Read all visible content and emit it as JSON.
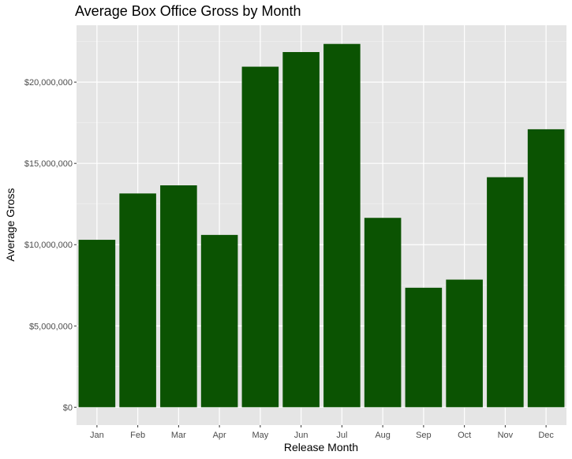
{
  "chart_data": {
    "type": "bar",
    "title": "Average Box Office Gross by Month",
    "xlabel": "Release Month",
    "ylabel": "Average Gross",
    "categories": [
      "Jan",
      "Feb",
      "Mar",
      "Apr",
      "May",
      "Jun",
      "Jul",
      "Aug",
      "Sep",
      "Oct",
      "Nov",
      "Dec"
    ],
    "values": [
      10300000,
      13150000,
      13650000,
      10600000,
      20950000,
      21850000,
      22350000,
      11650000,
      7350000,
      7850000,
      14150000,
      17100000
    ],
    "ylim": [
      -1100000,
      23500000
    ],
    "yticks": [
      0,
      5000000,
      10000000,
      15000000,
      20000000
    ],
    "ytick_labels": [
      "$0",
      "$5,000,000",
      "$10,000,000",
      "$15,000,000",
      "$20,000,000"
    ],
    "grid": true,
    "legend": "none",
    "colors": {
      "bar": "#0b5302",
      "panel": "#e5e5e5",
      "grid_major": "#ffffff",
      "grid_minor": "#f2f2f2",
      "tick_text": "#4d4d4d"
    }
  }
}
